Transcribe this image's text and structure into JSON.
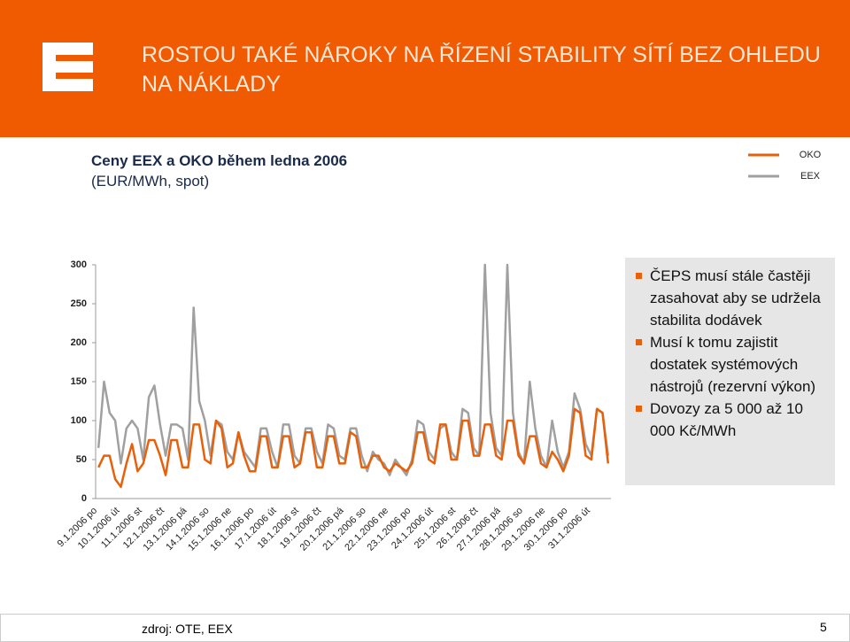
{
  "slide": {
    "title_lines": [
      "ROSTOU TAKÉ NÁROKY NA ŘÍZENÍ STABILITY SÍTÍ BEZ OHLEDU",
      "NA NÁKLADY"
    ],
    "bullets": [
      "ČEPS musí stále častěji zasahovat aby se udržela stabilita dodávek",
      "Musí k tomu zajistit dostatek systémových nástrojů (rezervní výkon)",
      "Dovozy za 5 000 až 10 000 Kč/MWh"
    ],
    "source": "zdroj: OTE, EEX",
    "page": 5
  },
  "chart_data": {
    "type": "line",
    "title": "Ceny EEX a OKO během ledna 2006",
    "subtitle": "(EUR/MWh, spot)",
    "categories": [
      "9.1.2006 po",
      null,
      null,
      null,
      "10.1.2006 út",
      null,
      null,
      null,
      "11.1.2006 st",
      null,
      null,
      null,
      "12.1.2006 čt",
      null,
      null,
      null,
      "13.1.2006 pá",
      null,
      null,
      null,
      "14.1.2006 so",
      null,
      null,
      null,
      "15.1.2006 ne",
      null,
      null,
      null,
      "16.1.2006 po",
      null,
      null,
      null,
      "17.1.2006 út",
      null,
      null,
      null,
      "18.1.2006 st",
      null,
      null,
      null,
      "19.1.2006 čt",
      null,
      null,
      null,
      "20.1.2006 pá",
      null,
      null,
      null,
      "21.1.2006 so",
      null,
      null,
      null,
      "22.1.2006 ne",
      null,
      null,
      null,
      "23.1.2006 po",
      null,
      null,
      null,
      "24.1.2006 út",
      null,
      null,
      null,
      "25.1.2006 st",
      null,
      null,
      null,
      "26.1.2006 čt",
      null,
      null,
      null,
      "27.1.2006 pá",
      null,
      null,
      null,
      "28.1.2006 so",
      null,
      null,
      null,
      "29.1.2006 ne",
      null,
      null,
      null,
      "30.1.2006 po",
      null,
      null,
      null,
      "31.1.2006 út",
      null,
      null,
      null
    ],
    "series": [
      {
        "name": "OKO",
        "color": "#e8600a",
        "values": [
          40,
          55,
          55,
          25,
          15,
          45,
          70,
          35,
          45,
          75,
          75,
          55,
          30,
          75,
          75,
          40,
          40,
          95,
          95,
          50,
          45,
          100,
          90,
          40,
          45,
          85,
          55,
          35,
          35,
          80,
          80,
          40,
          40,
          80,
          80,
          40,
          45,
          85,
          85,
          40,
          40,
          80,
          80,
          45,
          45,
          85,
          80,
          40,
          40,
          55,
          55,
          40,
          35,
          45,
          40,
          35,
          45,
          85,
          85,
          50,
          45,
          95,
          95,
          50,
          50,
          100,
          100,
          55,
          55,
          95,
          95,
          55,
          50,
          100,
          100,
          55,
          45,
          80,
          80,
          45,
          40,
          60,
          50,
          35,
          55,
          115,
          110,
          55,
          50,
          115,
          110,
          45
        ]
      },
      {
        "name": "EEX",
        "color": "#a0a0a0",
        "values": [
          65,
          150,
          110,
          100,
          45,
          90,
          100,
          90,
          50,
          130,
          145,
          95,
          55,
          95,
          95,
          90,
          50,
          245,
          125,
          100,
          55,
          100,
          95,
          60,
          50,
          85,
          60,
          50,
          40,
          90,
          90,
          60,
          40,
          95,
          95,
          55,
          45,
          90,
          90,
          60,
          45,
          95,
          90,
          55,
          50,
          90,
          90,
          55,
          35,
          60,
          50,
          45,
          30,
          50,
          40,
          30,
          50,
          100,
          95,
          60,
          50,
          90,
          95,
          60,
          50,
          115,
          110,
          65,
          55,
          300,
          110,
          65,
          55,
          300,
          110,
          60,
          45,
          150,
          90,
          55,
          40,
          100,
          60,
          40,
          60,
          135,
          115,
          70,
          55,
          115,
          110,
          55
        ]
      }
    ],
    "ylim": [
      0,
      300
    ],
    "yticks": [
      0,
      50,
      100,
      150,
      200,
      250,
      300
    ],
    "legend": "top-right"
  }
}
